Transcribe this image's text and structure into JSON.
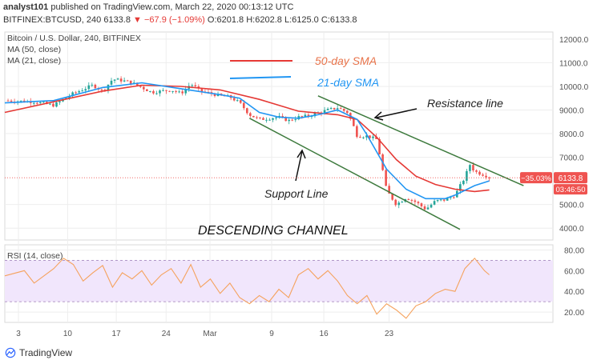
{
  "header": {
    "publisher": "analyst101",
    "published_text": "published on TradingView.com, March 22, 2020 00:13:12 UTC",
    "symbol": "BITFINEX:BTCUSD, 240",
    "ohlc": {
      "last": "6133.8",
      "change": "▼ −67.9 (−1.09%)",
      "open_label": "O:",
      "open": "6201.8",
      "high_label": "H:",
      "high": "6202.8",
      "low_label": "L:",
      "low": "6125.0",
      "close_label": "C:",
      "close": "6133.8"
    }
  },
  "legend": {
    "title": "Bitcoin / U.S. Dollar, 240, BITFINEX",
    "ma50": "MA (50, close)",
    "ma21": "MA (21, close)",
    "rsi": "RSI (14, close)"
  },
  "price_badges": {
    "change_pct": "−35.03%",
    "price": "6133.8",
    "countdown": "03:46:50"
  },
  "footer": {
    "brand": "TradingView"
  },
  "colors": {
    "bull": "#26a69a",
    "bear": "#ef5350",
    "ma50": "#e53935",
    "ma21": "#2196f3",
    "channel": "#3d7a3d",
    "rsi_line": "#f5a25d",
    "rsi_band": "#f1e6fc",
    "annotation_text": "#e8734a"
  },
  "chart_data": {
    "type": "candlestick",
    "title": "Bitcoin / U.S. Dollar, 240, BITFINEX",
    "x_ticks": [
      "3",
      "10",
      "17",
      "24",
      "Mar",
      "9",
      "16",
      "23"
    ],
    "y_ticks": [
      "12000.0",
      "11000.0",
      "10000.0",
      "9000.0",
      "8000.0",
      "7000.0",
      "5000.0",
      "4000.0"
    ],
    "ylim": [
      3500,
      12300
    ],
    "rsi_ticks": [
      "80.00",
      "60.00",
      "40.00",
      "20.00"
    ],
    "rsi_ylim": [
      10,
      85
    ],
    "rsi_bands": [
      30,
      70
    ],
    "price_path": [
      [
        0,
        9400
      ],
      [
        3,
        9350
      ],
      [
        5,
        9200
      ],
      [
        7,
        9700
      ],
      [
        9,
        10050
      ],
      [
        10,
        9800
      ],
      [
        11,
        10300
      ],
      [
        12,
        10250
      ],
      [
        13,
        10150
      ],
      [
        15,
        9750
      ],
      [
        17,
        9850
      ],
      [
        18,
        9700
      ],
      [
        19,
        10100
      ],
      [
        20,
        9800
      ],
      [
        21,
        9700
      ],
      [
        22,
        9600
      ],
      [
        23,
        9550
      ],
      [
        24,
        9300
      ],
      [
        25,
        8800
      ],
      [
        26,
        8600
      ],
      [
        28,
        8700
      ],
      [
        29,
        8550
      ],
      [
        30,
        8700
      ],
      [
        31,
        8750
      ],
      [
        33,
        9000
      ],
      [
        34,
        9100
      ],
      [
        35,
        8900
      ],
      [
        35.5,
        8450
      ],
      [
        36,
        7900
      ],
      [
        37,
        7900
      ],
      [
        38,
        7750
      ],
      [
        39,
        5600
      ],
      [
        40,
        5000
      ],
      [
        41,
        5300
      ],
      [
        42,
        5100
      ],
      [
        43,
        4800
      ],
      [
        44,
        5150
      ],
      [
        45,
        5200
      ],
      [
        46,
        5400
      ],
      [
        47,
        6150
      ],
      [
        47.5,
        6700
      ],
      [
        48,
        6400
      ],
      [
        49,
        6250
      ],
      [
        49.5,
        6150
      ]
    ],
    "ma50_path": [
      [
        0,
        8900
      ],
      [
        5,
        9350
      ],
      [
        10,
        9800
      ],
      [
        14,
        10050
      ],
      [
        18,
        10000
      ],
      [
        22,
        9850
      ],
      [
        26,
        9450
      ],
      [
        30,
        8950
      ],
      [
        34,
        8800
      ],
      [
        36,
        8600
      ],
      [
        38,
        7850
      ],
      [
        40,
        6900
      ],
      [
        42,
        6200
      ],
      [
        44,
        5850
      ],
      [
        46,
        5650
      ],
      [
        48,
        5550
      ],
      [
        49.5,
        5620
      ]
    ],
    "ma21_path": [
      [
        0,
        9300
      ],
      [
        5,
        9400
      ],
      [
        10,
        9950
      ],
      [
        14,
        10150
      ],
      [
        18,
        9900
      ],
      [
        22,
        9650
      ],
      [
        24,
        9500
      ],
      [
        26,
        8900
      ],
      [
        28,
        8700
      ],
      [
        30,
        8650
      ],
      [
        32,
        8800
      ],
      [
        34,
        9000
      ],
      [
        36,
        8600
      ],
      [
        37,
        7950
      ],
      [
        39,
        6500
      ],
      [
        41,
        5650
      ],
      [
        43,
        5250
      ],
      [
        45,
        5250
      ],
      [
        46,
        5400
      ],
      [
        48,
        5800
      ],
      [
        49.5,
        6000
      ]
    ],
    "rsi_path": [
      [
        0,
        55
      ],
      [
        2,
        60
      ],
      [
        3,
        48
      ],
      [
        5,
        62
      ],
      [
        6,
        72
      ],
      [
        7,
        66
      ],
      [
        8,
        50
      ],
      [
        9,
        58
      ],
      [
        10,
        65
      ],
      [
        11,
        44
      ],
      [
        12,
        58
      ],
      [
        13,
        52
      ],
      [
        14,
        60
      ],
      [
        15,
        46
      ],
      [
        16,
        56
      ],
      [
        17,
        62
      ],
      [
        18,
        48
      ],
      [
        19,
        66
      ],
      [
        20,
        44
      ],
      [
        21,
        52
      ],
      [
        22,
        38
      ],
      [
        23,
        48
      ],
      [
        24,
        34
      ],
      [
        25,
        28
      ],
      [
        26,
        36
      ],
      [
        27,
        30
      ],
      [
        28,
        42
      ],
      [
        29,
        34
      ],
      [
        30,
        56
      ],
      [
        31,
        62
      ],
      [
        32,
        52
      ],
      [
        33,
        60
      ],
      [
        34,
        50
      ],
      [
        35,
        36
      ],
      [
        36,
        28
      ],
      [
        37,
        36
      ],
      [
        38,
        18
      ],
      [
        39,
        28
      ],
      [
        40,
        22
      ],
      [
        41,
        14
      ],
      [
        42,
        26
      ],
      [
        43,
        30
      ],
      [
        44,
        38
      ],
      [
        45,
        42
      ],
      [
        46,
        40
      ],
      [
        47,
        62
      ],
      [
        48,
        72
      ],
      [
        49,
        60
      ],
      [
        49.5,
        56
      ]
    ],
    "series": [
      {
        "name": "MA (50, close)",
        "role": "ma50"
      },
      {
        "name": "MA (21, close)",
        "role": "ma21"
      },
      {
        "name": "RSI (14, close)",
        "role": "rsi"
      }
    ],
    "annotations": {
      "sma50_label": "50-day SMA",
      "sma21_label": "21-day SMA",
      "resistance_label": "Resistance line",
      "support_label": "Support Line",
      "channel_label": "DESCENDING CHANNEL"
    },
    "channel": {
      "resistance": [
        [
          36,
          8950
        ],
        [
          53,
          5800
        ]
      ],
      "support": [
        [
          25,
          8650
        ],
        [
          46.5,
          3950
        ]
      ],
      "resistance_ext": [
        [
          32,
          9600
        ]
      ]
    },
    "grid": true
  }
}
